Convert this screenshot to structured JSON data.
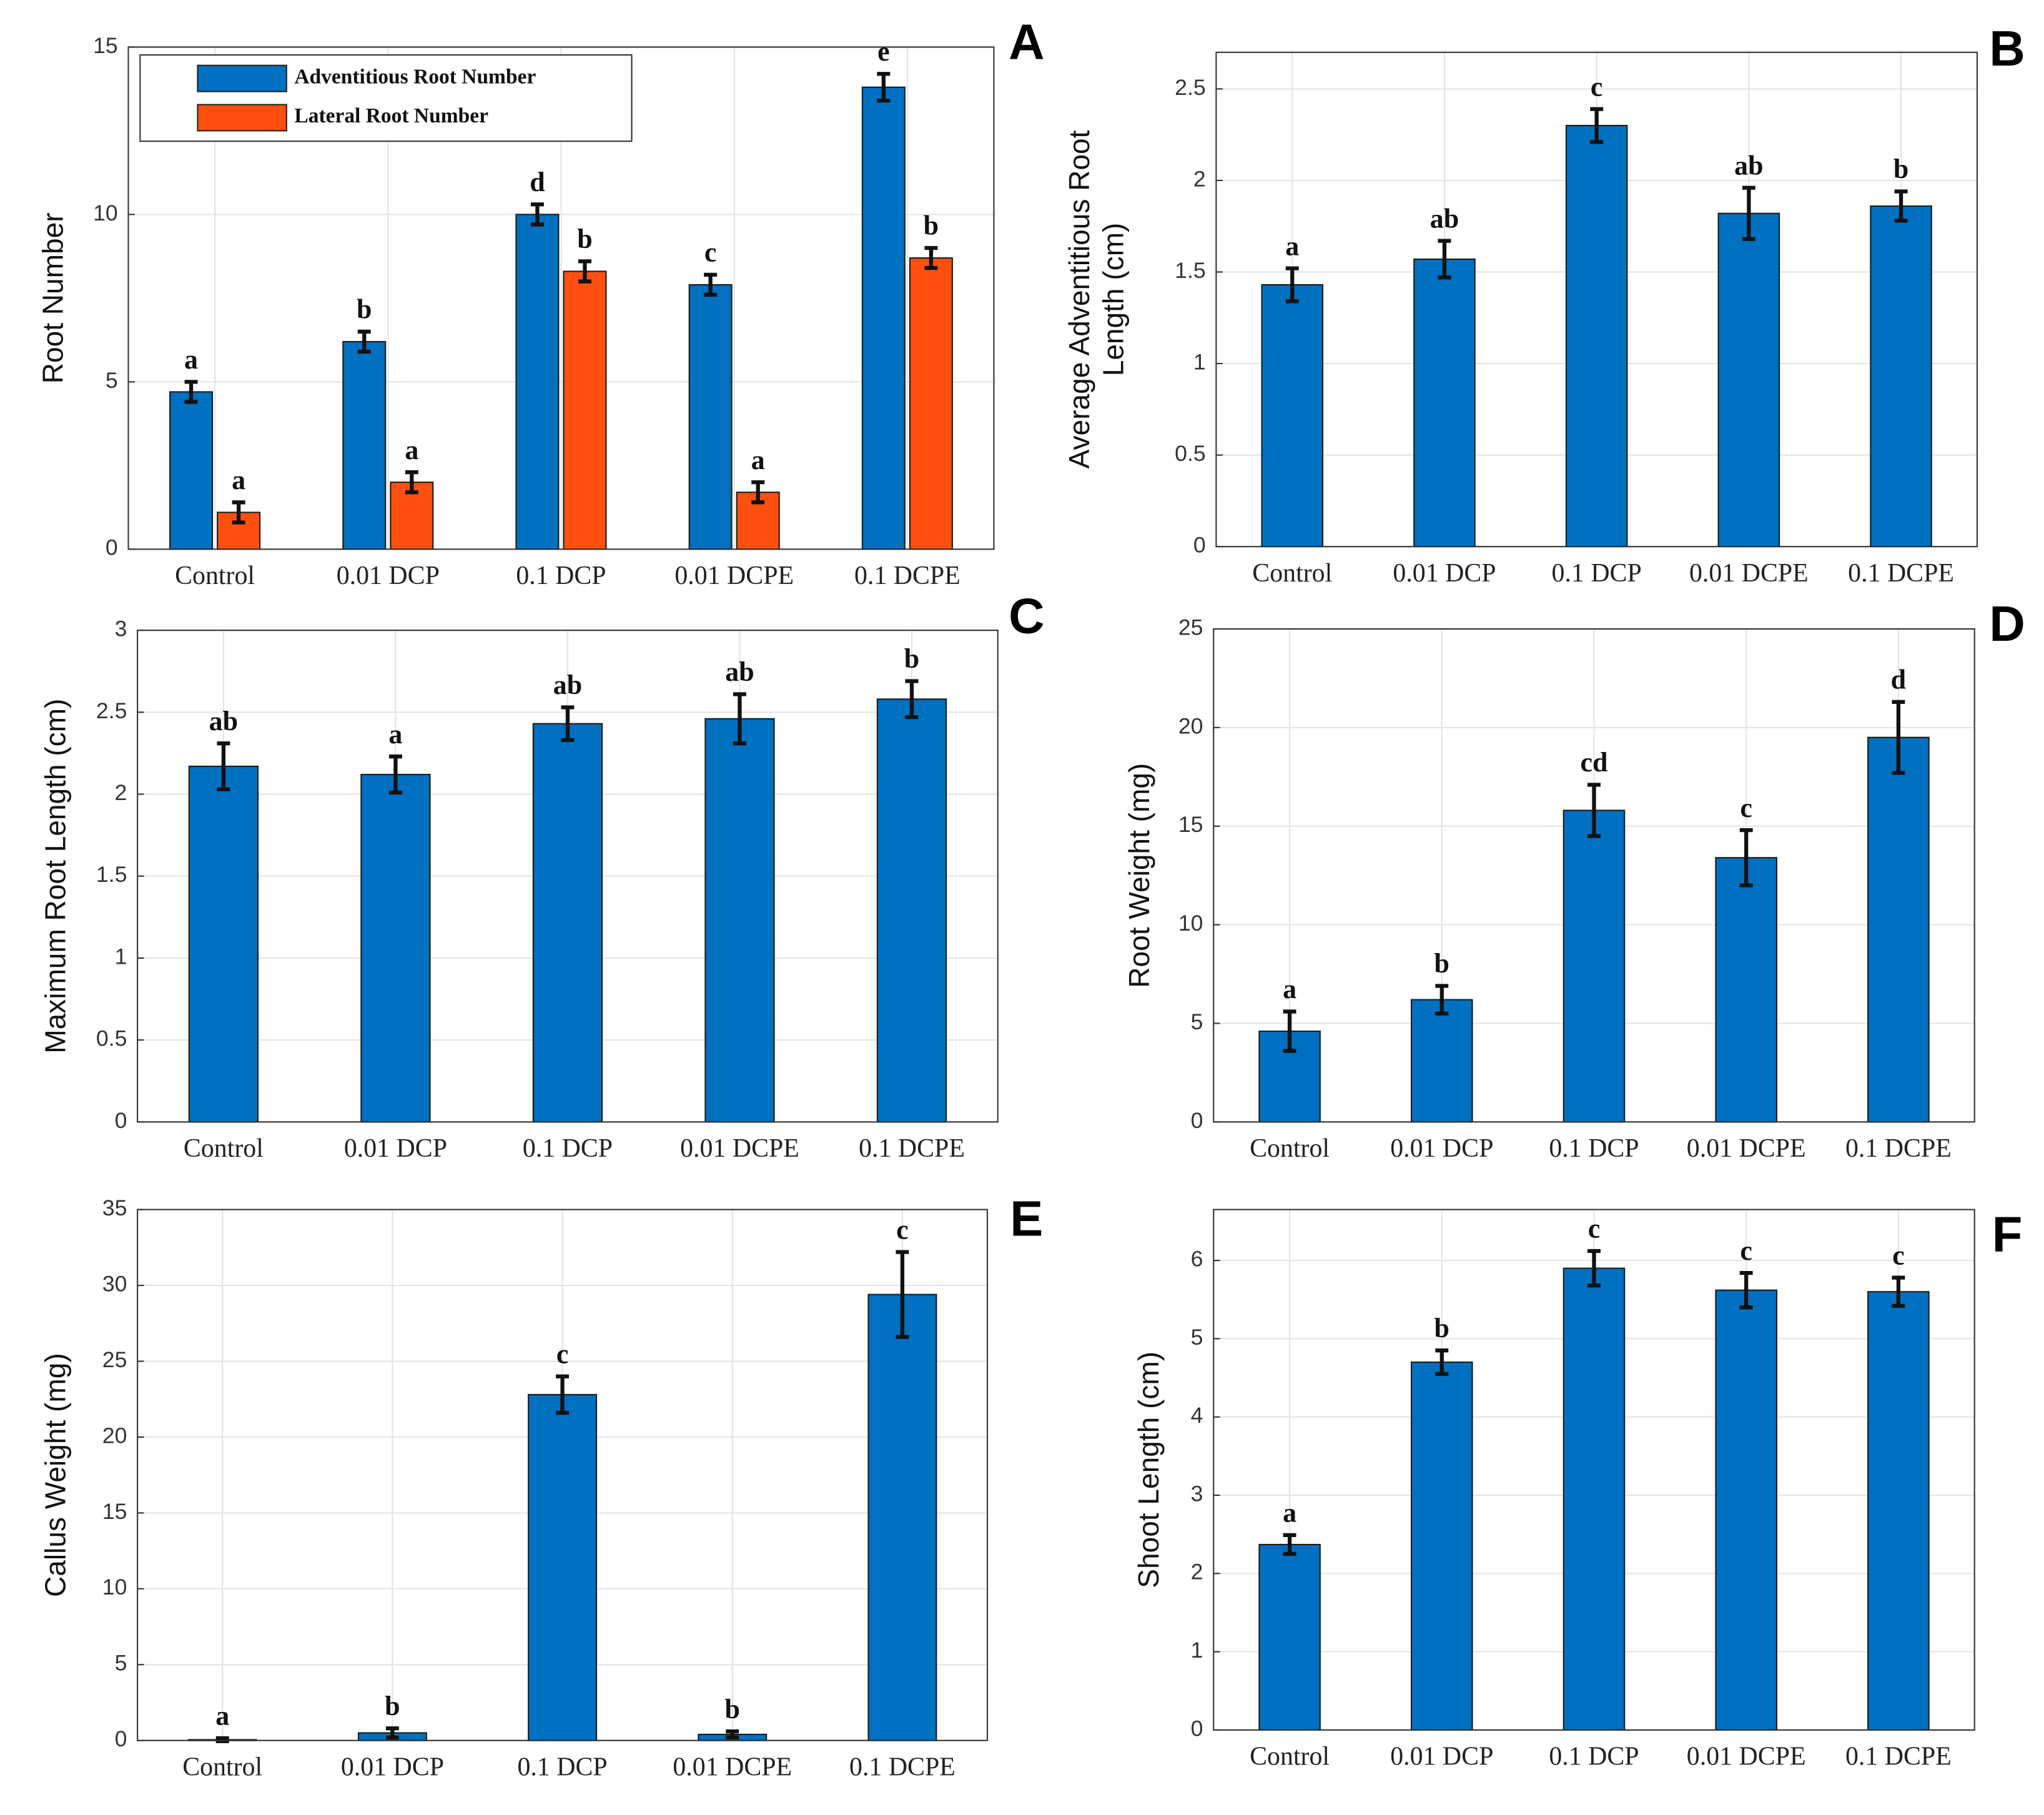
{
  "chart_data": [
    {
      "type": "bar",
      "panel": "A",
      "ylabel": [
        "Root Number"
      ],
      "categories": [
        "Control",
        "0.01 DCP",
        "0.1 DCP",
        "0.01 DCPE",
        "0.1 DCPE"
      ],
      "ylim": [
        0,
        15
      ],
      "yticks": [
        0,
        5,
        10,
        15
      ],
      "grid": true,
      "legend": "upper left",
      "series": [
        {
          "name": "Adventitious Root Number",
          "color": "#0070c0",
          "values": [
            4.7,
            6.2,
            10.0,
            7.9,
            13.8
          ],
          "errors": [
            0.3,
            0.3,
            0.3,
            0.3,
            0.4
          ],
          "annotations": [
            "a",
            "b",
            "d",
            "c",
            "e"
          ]
        },
        {
          "name": "Lateral Root Number",
          "color": "#ff5010",
          "values": [
            1.1,
            2.0,
            8.3,
            1.7,
            8.7
          ],
          "errors": [
            0.3,
            0.3,
            0.3,
            0.3,
            0.3
          ],
          "annotations": [
            "a",
            "a",
            "b",
            "a",
            "b"
          ]
        }
      ]
    },
    {
      "type": "bar",
      "panel": "B",
      "ylabel": [
        "Average Adventitious  Root",
        "Length (cm)"
      ],
      "categories": [
        "Control",
        "0.01 DCP",
        "0.1 DCP",
        "0.01 DCPE",
        "0.1 DCPE"
      ],
      "ylim": [
        0,
        2.7
      ],
      "yticks": [
        0,
        0.5,
        1,
        1.5,
        2,
        2.5
      ],
      "grid": true,
      "series": [
        {
          "color": "#0070c0",
          "values": [
            1.43,
            1.57,
            2.3,
            1.82,
            1.86
          ],
          "errors": [
            0.09,
            0.1,
            0.09,
            0.14,
            0.08
          ],
          "annotations": [
            "a",
            "ab",
            "c",
            "ab",
            "b"
          ]
        }
      ]
    },
    {
      "type": "bar",
      "panel": "C",
      "ylabel": [
        "Maximum Root Length (cm)"
      ],
      "categories": [
        "Control",
        "0.01 DCP",
        "0.1 DCP",
        "0.01 DCPE",
        "0.1 DCPE"
      ],
      "ylim": [
        0,
        3
      ],
      "yticks": [
        0,
        0.5,
        1,
        1.5,
        2,
        2.5,
        3
      ],
      "grid": true,
      "series": [
        {
          "color": "#0070c0",
          "values": [
            2.17,
            2.12,
            2.43,
            2.46,
            2.58
          ],
          "errors": [
            0.14,
            0.11,
            0.1,
            0.15,
            0.11
          ],
          "annotations": [
            "ab",
            "a",
            "ab",
            "ab",
            "b"
          ]
        }
      ]
    },
    {
      "type": "bar",
      "panel": "D",
      "ylabel": [
        "Root Weight (mg)"
      ],
      "categories": [
        "Control",
        "0.01 DCP",
        "0.1 DCP",
        "0.01 DCPE",
        "0.1 DCPE"
      ],
      "ylim": [
        0,
        25
      ],
      "yticks": [
        0,
        5,
        10,
        15,
        20,
        25
      ],
      "grid": true,
      "series": [
        {
          "color": "#0070c0",
          "values": [
            4.6,
            6.2,
            15.8,
            13.4,
            19.5
          ],
          "errors": [
            1.0,
            0.7,
            1.3,
            1.4,
            1.8
          ],
          "annotations": [
            "a",
            "b",
            "cd",
            "c",
            "d"
          ]
        }
      ]
    },
    {
      "type": "bar",
      "panel": "E",
      "ylabel": [
        "Callus Weight (mg)"
      ],
      "categories": [
        "Control",
        "0.01 DCP",
        "0.1 DCP",
        "0.01 DCPE",
        "0.1 DCPE"
      ],
      "ylim": [
        0,
        35
      ],
      "yticks": [
        0,
        5,
        10,
        15,
        20,
        25,
        30,
        35
      ],
      "grid": true,
      "series": [
        {
          "color": "#0070c0",
          "values": [
            0.05,
            0.5,
            22.8,
            0.4,
            29.4
          ],
          "errors": [
            0.1,
            0.3,
            1.2,
            0.2,
            2.8
          ],
          "annotations": [
            "a",
            "b",
            "c",
            "b",
            "c"
          ]
        }
      ]
    },
    {
      "type": "bar",
      "panel": "F",
      "ylabel": [
        "Shoot Length (cm)"
      ],
      "categories": [
        "Control",
        "0.01 DCP",
        "0.1 DCP",
        "0.01 DCPE",
        "0.1 DCPE"
      ],
      "ylim": [
        0,
        6.65
      ],
      "yticks": [
        0,
        1,
        2,
        3,
        4,
        5,
        6
      ],
      "grid": true,
      "series": [
        {
          "color": "#0070c0",
          "values": [
            2.37,
            4.7,
            5.9,
            5.62,
            5.6
          ],
          "errors": [
            0.12,
            0.15,
            0.22,
            0.22,
            0.18
          ],
          "annotations": [
            "a",
            "b",
            "c",
            "c",
            "c"
          ]
        }
      ]
    }
  ]
}
